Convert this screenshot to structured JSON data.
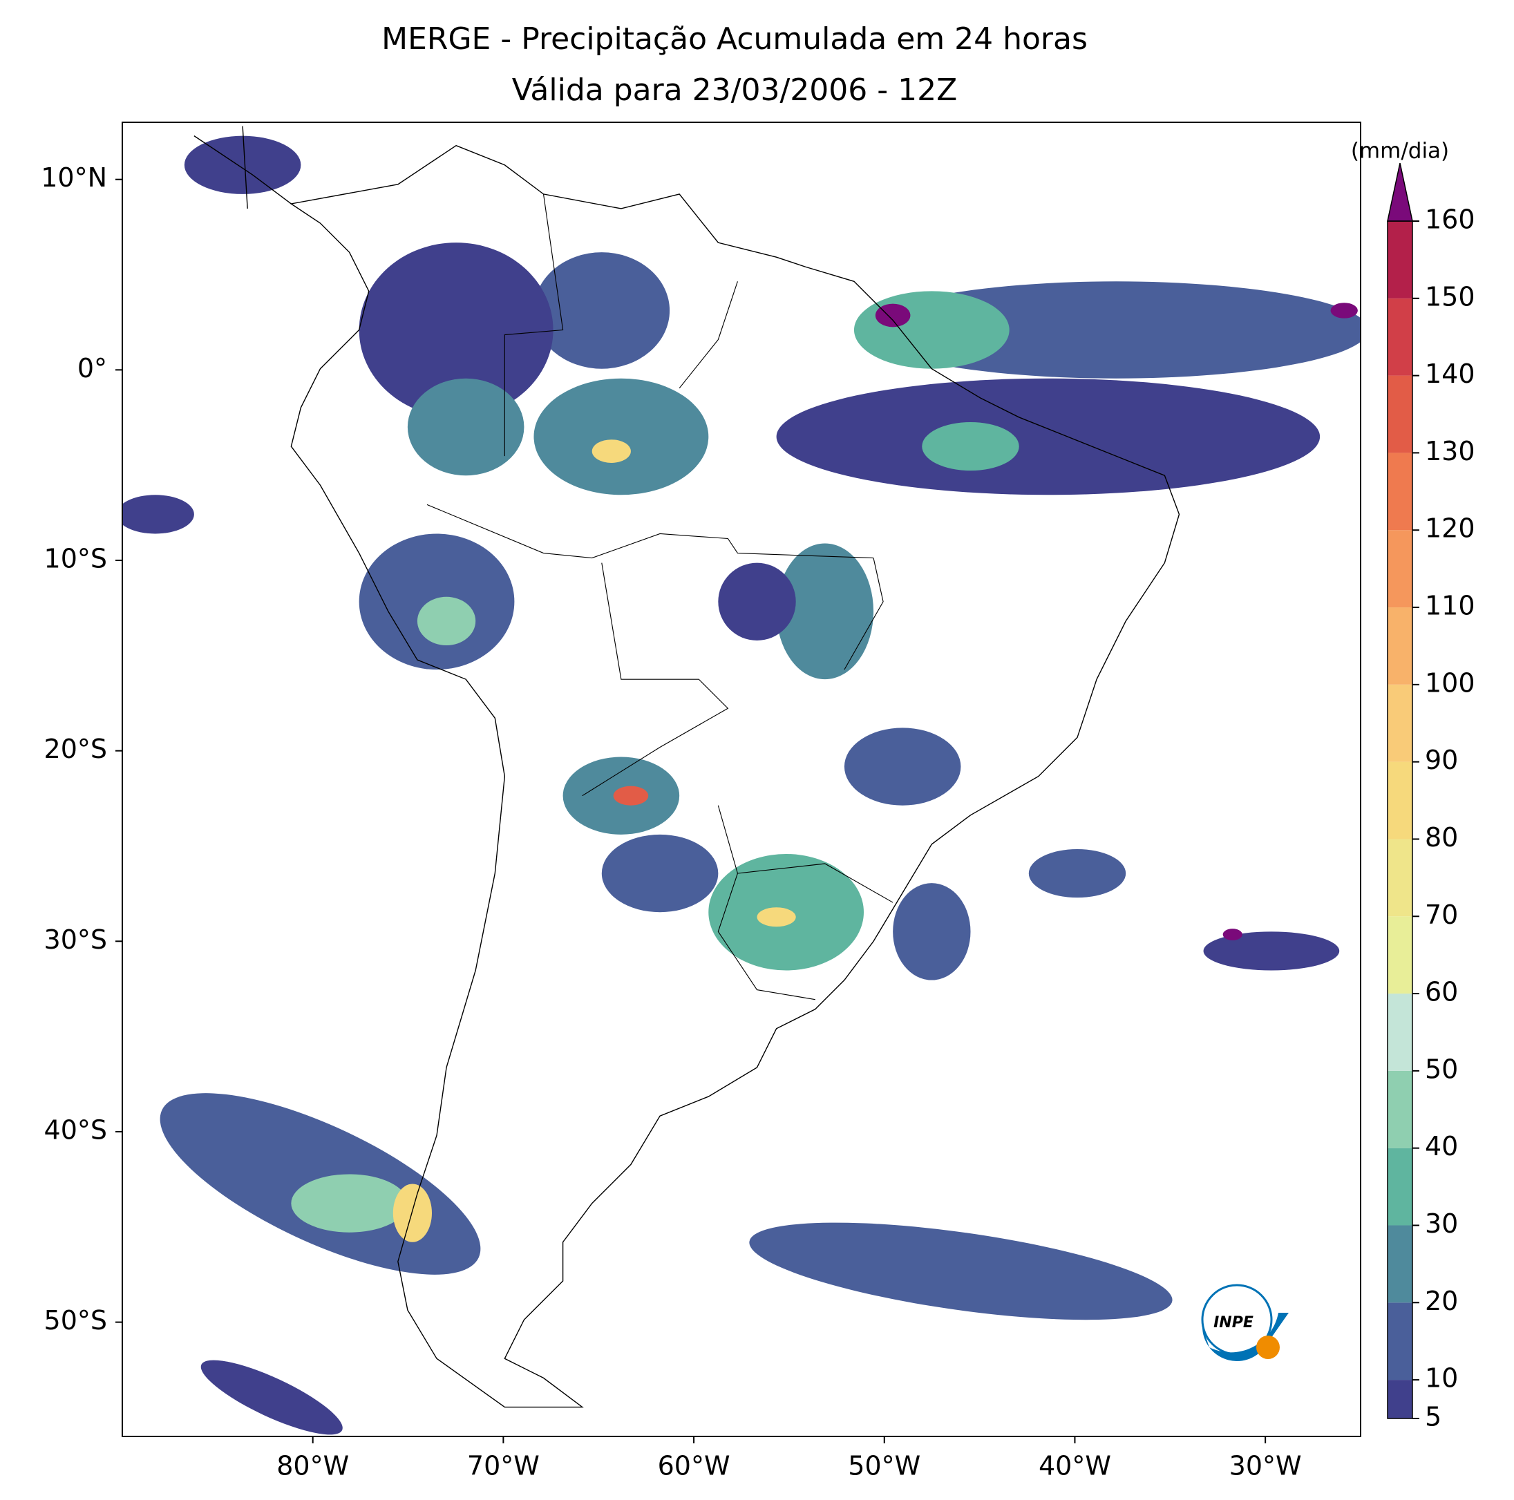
{
  "map": {
    "title": [
      "MERGE - Precipitação Acumulada em 24 horas",
      "Válida para 23/03/2006 - 12Z"
    ],
    "lon_range": [
      -90,
      -25
    ],
    "lat_range": [
      -56,
      13
    ],
    "lon_ticks": [
      {
        "value": -80,
        "label": "80°W"
      },
      {
        "value": -70,
        "label": "70°W"
      },
      {
        "value": -60,
        "label": "60°W"
      },
      {
        "value": -50,
        "label": "50°W"
      },
      {
        "value": -40,
        "label": "40°W"
      },
      {
        "value": -30,
        "label": "30°W"
      }
    ],
    "lat_ticks": [
      {
        "value": 10,
        "label": "10°N"
      },
      {
        "value": 0,
        "label": "0°"
      },
      {
        "value": -10,
        "label": "10°S"
      },
      {
        "value": -20,
        "label": "20°S"
      },
      {
        "value": -30,
        "label": "30°S"
      },
      {
        "value": -40,
        "label": "40°S"
      },
      {
        "value": -50,
        "label": "50°S"
      }
    ]
  },
  "colorbar": {
    "label": "(mm/dia)",
    "range": [
      5,
      160
    ],
    "ticks": [
      5,
      10,
      20,
      30,
      40,
      50,
      60,
      70,
      80,
      90,
      100,
      110,
      120,
      130,
      140,
      150,
      160
    ],
    "colors": [
      "#40408c",
      "#4a5f9a",
      "#4f8a9c",
      "#5fb59f",
      "#8fcfb0",
      "#c4e5d8",
      "#e8ee98",
      "#efe58a",
      "#f6d97c",
      "#f9cb78",
      "#f8b26a",
      "#f5975c",
      "#ef7a4f",
      "#e25c47",
      "#d13f48",
      "#b3204a"
    ],
    "extend_color": "#7a0a7a"
  },
  "logo": {
    "text": "INPE"
  }
}
